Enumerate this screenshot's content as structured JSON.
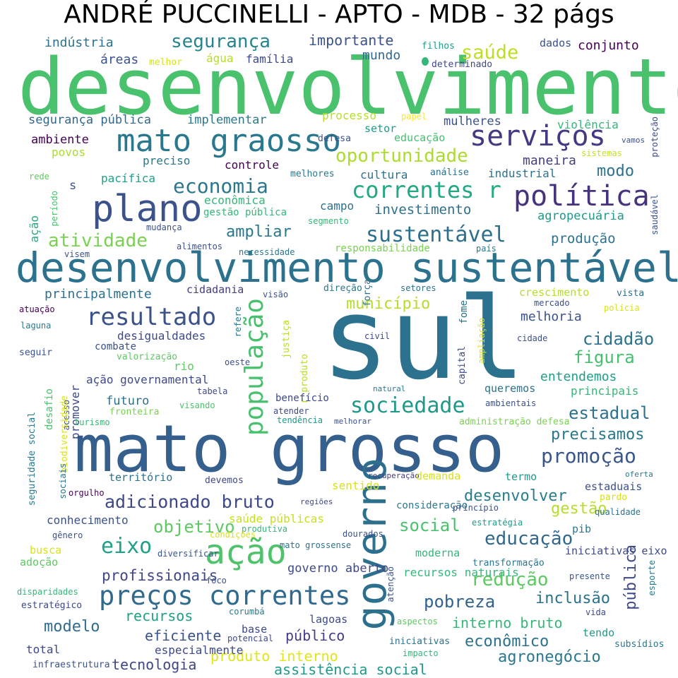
{
  "title": "ANDRÉ PUCCINELLI - APTO - MDB - 32 págs",
  "words": [
    {
      "text": "desenvolvimento",
      "color": "#4ac16d"
    },
    {
      "text": "sul",
      "color": "#2c728e"
    },
    {
      "text": "mato grosso",
      "color": "#355f8d"
    },
    {
      "text": "desenvolvimento sustentável",
      "color": "#2c728e"
    },
    {
      "text": "governo",
      "color": "#2d708e"
    },
    {
      "text": "plano",
      "color": "#3b528b"
    },
    {
      "text": "mato graosso",
      "color": "#2a788e"
    },
    {
      "text": "população",
      "color": "#48c16e"
    },
    {
      "text": "ação",
      "color": "#4ec36b"
    },
    {
      "text": "preços correntes",
      "color": "#306a8e"
    },
    {
      "text": "serviços",
      "color": "#443983"
    },
    {
      "text": "política",
      "color": "#46337e"
    },
    {
      "text": "correntes r",
      "color": "#22a884"
    },
    {
      "text": "sociedade",
      "color": "#1f998a"
    },
    {
      "text": "resultado",
      "color": "#3b528b"
    },
    {
      "text": "economia",
      "color": "#2a788e"
    },
    {
      "text": "sustentável",
      "color": "#2d708e"
    },
    {
      "text": "promoção",
      "color": "#39568c"
    },
    {
      "text": "eixo",
      "color": "#1fa088"
    },
    {
      "text": "educação",
      "color": "#31688e"
    },
    {
      "text": "redução",
      "color": "#5ec962"
    },
    {
      "text": "atividade",
      "color": "#7ad151"
    },
    {
      "text": "adicionado bruto",
      "color": "#3e4989"
    },
    {
      "text": "oportunidade",
      "color": "#addc30"
    },
    {
      "text": "saúde",
      "color": "#bddf26"
    },
    {
      "text": "segurança",
      "color": "#25858e"
    },
    {
      "text": "cidadão",
      "color": "#2c728e"
    },
    {
      "text": "figura",
      "color": "#46c06f"
    },
    {
      "text": "estadual",
      "color": "#2c728e"
    },
    {
      "text": "objetivo",
      "color": "#5ec962"
    },
    {
      "text": "social",
      "color": "#4ac16d"
    },
    {
      "text": "pobreza",
      "color": "#33638d"
    },
    {
      "text": "profissionais",
      "color": "#3f4788"
    },
    {
      "text": "inclusão",
      "color": "#2c728e"
    },
    {
      "text": "pública",
      "color": "#3e4989"
    },
    {
      "text": "desenvolver",
      "color": "#287d8e"
    },
    {
      "text": "gestão",
      "color": "#b5de2b"
    },
    {
      "text": "modelo",
      "color": "#2f6c8e"
    },
    {
      "text": "econômico",
      "color": "#2c728e"
    },
    {
      "text": "agronegócio",
      "color": "#2a788e"
    },
    {
      "text": "recursos",
      "color": "#1fa188"
    },
    {
      "text": "eficiente",
      "color": "#3b528b"
    },
    {
      "text": "produto interno",
      "color": "#e3e418"
    },
    {
      "text": "interno bruto",
      "color": "#35b779"
    },
    {
      "text": "tecnologia",
      "color": "#404688"
    },
    {
      "text": "público",
      "color": "#433e85"
    },
    {
      "text": "assistência social",
      "color": "#1f9a8a"
    },
    {
      "text": "ampliar",
      "color": "#2a788e"
    },
    {
      "text": "modo",
      "color": "#2c728e"
    },
    {
      "text": "precisamos",
      "color": "#2a788e"
    },
    {
      "text": "município",
      "color": "#b5de2b"
    },
    {
      "text": "melhoria",
      "color": "#3b528b"
    },
    {
      "text": "produção",
      "color": "#2c728e"
    },
    {
      "text": "entendemos",
      "color": "#1f9f88"
    },
    {
      "text": "principalmente",
      "color": "#2c728e"
    },
    {
      "text": "investimento",
      "color": "#2d708e"
    },
    {
      "text": "maneira",
      "color": "#433e85"
    },
    {
      "text": "mundo",
      "color": "#31688e"
    },
    {
      "text": "importante",
      "color": "#3b528b"
    },
    {
      "text": "indústria",
      "color": "#2c728e"
    },
    {
      "text": "áreas",
      "color": "#3b528b"
    },
    {
      "text": "água",
      "color": "#b5de2b"
    },
    {
      "text": "família",
      "color": "#3e4989"
    },
    {
      "text": "conjunto",
      "color": "#440154"
    },
    {
      "text": "dados",
      "color": "#3b528b"
    },
    {
      "text": "filhos",
      "color": "#1f9e89"
    },
    {
      "text": "determinado",
      "color": "#3e4989"
    },
    {
      "text": "melhor",
      "color": "#d8e219"
    },
    {
      "text": "segurança pública",
      "color": "#31688e"
    },
    {
      "text": "implementar",
      "color": "#2a788e"
    },
    {
      "text": "processo",
      "color": "#b5de2b"
    },
    {
      "text": "papel",
      "color": "#fde725"
    },
    {
      "text": "mulheres",
      "color": "#3b528b"
    },
    {
      "text": "violência",
      "color": "#35b779"
    },
    {
      "text": "ambiente",
      "color": "#440154"
    },
    {
      "text": "setor",
      "color": "#1f9a8a"
    },
    {
      "text": "defesa",
      "color": "#3b528b"
    },
    {
      "text": "educação",
      "color": "#46c06f"
    },
    {
      "text": "vamos",
      "color": "#3b528b"
    },
    {
      "text": "povos",
      "color": "#addc30"
    },
    {
      "text": "preciso",
      "color": "#2a788e"
    },
    {
      "text": "sistemas",
      "color": "#c8e020"
    },
    {
      "text": "proteção",
      "color": "#3e4989"
    },
    {
      "text": "controle",
      "color": "#440154"
    },
    {
      "text": "rede",
      "color": "#5ec962"
    },
    {
      "text": "pacífica",
      "color": "#1fa088"
    },
    {
      "text": "melhores",
      "color": "#2a788e"
    },
    {
      "text": "cultura",
      "color": "#2c728e"
    },
    {
      "text": "análise",
      "color": "#2c728e"
    },
    {
      "text": "industrial",
      "color": "#2c728e"
    },
    {
      "text": "s",
      "color": "#3b528b"
    },
    {
      "text": "econômica",
      "color": "#35b779"
    },
    {
      "text": "campo",
      "color": "#2c728e"
    },
    {
      "text": "ação",
      "color": "#22a884"
    },
    {
      "text": "período",
      "color": "#4ac16d"
    },
    {
      "text": "gestão pública",
      "color": "#35b779"
    },
    {
      "text": "segmento",
      "color": "#35b779"
    },
    {
      "text": "agropecuária",
      "color": "#1f9a8a"
    },
    {
      "text": "mudança",
      "color": "#3b528b"
    },
    {
      "text": "alimentos",
      "color": "#3b528b"
    },
    {
      "text": "necessidade",
      "color": "#2a788e"
    },
    {
      "text": "responsabilidade",
      "color": "#7ad151"
    },
    {
      "text": "país",
      "color": "#2a788e"
    },
    {
      "text": "saudável",
      "color": "#3b528b"
    },
    {
      "text": "visem",
      "color": "#3b528b"
    },
    {
      "text": "cidadania",
      "color": "#433e85"
    },
    {
      "text": "visão",
      "color": "#3b528b"
    },
    {
      "text": "direção",
      "color": "#2a788e"
    },
    {
      "text": "força",
      "color": "#2c728e"
    },
    {
      "text": "setores",
      "color": "#2c728e"
    },
    {
      "text": "crescimento",
      "color": "#b5de2b"
    },
    {
      "text": "vista",
      "color": "#2c728e"
    },
    {
      "text": "mercado",
      "color": "#3b528b"
    },
    {
      "text": "polícia",
      "color": "#d8e219"
    },
    {
      "text": "atuação",
      "color": "#440154"
    },
    {
      "text": "laguna",
      "color": "#2a788e"
    },
    {
      "text": "refere",
      "color": "#2a788e"
    },
    {
      "text": "justiça",
      "color": "#b5de2b"
    },
    {
      "text": "r produto",
      "color": "#b5de2b"
    },
    {
      "text": "fome",
      "color": "#2c728e"
    },
    {
      "text": "capital",
      "color": "#3e4989"
    },
    {
      "text": "ampliação",
      "color": "#d8e219"
    },
    {
      "text": "civil",
      "color": "#3e4989"
    },
    {
      "text": "cidade",
      "color": "#3b528b"
    },
    {
      "text": "desigualdades",
      "color": "#3e4989"
    },
    {
      "text": "seguir",
      "color": "#3b528b"
    },
    {
      "text": "combate",
      "color": "#3b528b"
    },
    {
      "text": "valorização",
      "color": "#5ec962"
    },
    {
      "text": "rio",
      "color": "#5ec962"
    },
    {
      "text": "oeste",
      "color": "#3b528b"
    },
    {
      "text": "promover",
      "color": "#3e4989"
    },
    {
      "text": "ação governamental",
      "color": "#3e4989"
    },
    {
      "text": "tabela",
      "color": "#3e4989"
    },
    {
      "text": "futuro",
      "color": "#2c728e"
    },
    {
      "text": "benefício",
      "color": "#3e4989"
    },
    {
      "text": "atender",
      "color": "#3e4989"
    },
    {
      "text": "queremos",
      "color": "#2c728e"
    },
    {
      "text": "principais",
      "color": "#35b779"
    },
    {
      "text": "natural",
      "color": "#2a788e"
    },
    {
      "text": "ambientais",
      "color": "#3b528b"
    },
    {
      "text": "visando",
      "color": "#4ac16d"
    },
    {
      "text": "fronteira",
      "color": "#7ad151"
    },
    {
      "text": "acesso",
      "color": "#3b528b"
    },
    {
      "text": "tendência",
      "color": "#1f9a8a"
    },
    {
      "text": "melhorar",
      "color": "#3b528b"
    },
    {
      "text": "administração defesa",
      "color": "#7ad151"
    },
    {
      "text": "seguridade social",
      "color": "#2a788e"
    },
    {
      "text": "desafio",
      "color": "#4ac16d"
    },
    {
      "text": "biodiversidade",
      "color": "#d8e219"
    },
    {
      "text": "turismo",
      "color": "#35b779"
    },
    {
      "text": "sociais",
      "color": "#2c728e"
    },
    {
      "text": "território",
      "color": "#2c728e"
    },
    {
      "text": "devemos",
      "color": "#3e4989"
    },
    {
      "text": "sentido",
      "color": "#d8e219"
    },
    {
      "text": "recuperação",
      "color": "#433e85"
    },
    {
      "text": "demanda",
      "color": "#d8e219"
    },
    {
      "text": "termo",
      "color": "#1f9a8a"
    },
    {
      "text": "oferta",
      "color": "#2a788e"
    },
    {
      "text": "estaduais",
      "color": "#3b528b"
    },
    {
      "text": "pardo",
      "color": "#d8e219"
    },
    {
      "text": "orgulho",
      "color": "#440154"
    },
    {
      "text": "regiões",
      "color": "#3e4989"
    },
    {
      "text": "consideração",
      "color": "#2a788e"
    },
    {
      "text": "princípio",
      "color": "#3b528b"
    },
    {
      "text": "qualidade",
      "color": "#2c728e"
    },
    {
      "text": "conhecimento",
      "color": "#3b528b"
    },
    {
      "text": "saúde públicas",
      "color": "#c8e020"
    },
    {
      "text": "produtiva",
      "color": "#35b779"
    },
    {
      "text": "estratégia",
      "color": "#1f9a8a"
    },
    {
      "text": "pib",
      "color": "#2a788e"
    },
    {
      "text": "gênero",
      "color": "#3b528b"
    },
    {
      "text": "condições",
      "color": "#d8e219"
    },
    {
      "text": "dourados",
      "color": "#3b528b"
    },
    {
      "text": "busca",
      "color": "#d8e219"
    },
    {
      "text": "diversificar",
      "color": "#3b528b"
    },
    {
      "text": "mato grossense",
      "color": "#2c728e"
    },
    {
      "text": "moderna",
      "color": "#35b779"
    },
    {
      "text": "iniciativas eixo",
      "color": "#3e4989"
    },
    {
      "text": "adoção",
      "color": "#5ec962"
    },
    {
      "text": "governo aberto",
      "color": "#3e4989"
    },
    {
      "text": "atenção",
      "color": "#3b528b"
    },
    {
      "text": "recursos naturais",
      "color": "#35b779"
    },
    {
      "text": "transformação",
      "color": "#2a788e"
    },
    {
      "text": "disparidades",
      "color": "#35b779"
    },
    {
      "text": "foco",
      "color": "#3b528b"
    },
    {
      "text": "presente",
      "color": "#3b528b"
    },
    {
      "text": "esporte",
      "color": "#2a788e"
    },
    {
      "text": "estratégico",
      "color": "#3e4989"
    },
    {
      "text": "corumbá",
      "color": "#2a788e"
    },
    {
      "text": "vida",
      "color": "#3e4989"
    },
    {
      "text": "base",
      "color": "#3e4989"
    },
    {
      "text": "lagoas",
      "color": "#3e4989"
    },
    {
      "text": "aspectos",
      "color": "#5ec962"
    },
    {
      "text": "potencial",
      "color": "#3e4989"
    },
    {
      "text": "iniciativas",
      "color": "#2c728e"
    },
    {
      "text": "tendo",
      "color": "#1f9a8a"
    },
    {
      "text": "subsídios",
      "color": "#2a788e"
    },
    {
      "text": "total",
      "color": "#3e4989"
    },
    {
      "text": "especialmente",
      "color": "#3e4989"
    },
    {
      "text": "impacto",
      "color": "#35b779"
    },
    {
      "text": "infraestrutura",
      "color": "#3b528b"
    }
  ]
}
